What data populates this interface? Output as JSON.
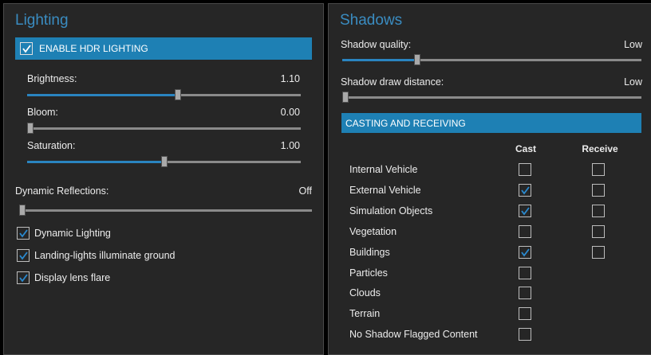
{
  "lighting": {
    "title": "Lighting",
    "hdr": {
      "label": "ENABLE HDR LIGHTING",
      "checked": true
    },
    "sliders": [
      {
        "label": "Brightness:",
        "value": "1.10",
        "level": 0.55
      },
      {
        "label": "Bloom:",
        "value": "0.00",
        "level": 0.0
      },
      {
        "label": "Saturation:",
        "value": "1.00",
        "level": 0.5
      }
    ],
    "reflections": {
      "label": "Dynamic Reflections:",
      "value": "Off",
      "level": 0.0
    },
    "options": [
      {
        "label": "Dynamic Lighting",
        "checked": true
      },
      {
        "label": "Landing-lights illuminate ground",
        "checked": true
      },
      {
        "label": "Display lens flare",
        "checked": true
      }
    ]
  },
  "shadows": {
    "title": "Shadows",
    "quality": {
      "label": "Shadow quality:",
      "value": "Low",
      "level": 0.25
    },
    "distance": {
      "label": "Shadow draw distance:",
      "value": "Low",
      "level": 0.0
    },
    "casting_header": "CASTING AND RECEIVING",
    "col_cast": "Cast",
    "col_receive": "Receive",
    "rows": [
      {
        "label": "Internal Vehicle",
        "cast": false,
        "receive": false
      },
      {
        "label": "External Vehicle",
        "cast": true,
        "receive": false
      },
      {
        "label": "Simulation Objects",
        "cast": true,
        "receive": false
      },
      {
        "label": "Vegetation",
        "cast": false,
        "receive": false
      },
      {
        "label": "Buildings",
        "cast": true,
        "receive": false
      },
      {
        "label": "Particles",
        "cast": false,
        "receive": null
      },
      {
        "label": "Clouds",
        "cast": false,
        "receive": null
      },
      {
        "label": "Terrain",
        "cast": false,
        "receive": null
      },
      {
        "label": "No Shadow Flagged Content",
        "cast": false,
        "receive": null
      }
    ]
  },
  "colors": {
    "accent": "#1e80b4",
    "title": "#3a8cc1",
    "panel": "#262626"
  }
}
